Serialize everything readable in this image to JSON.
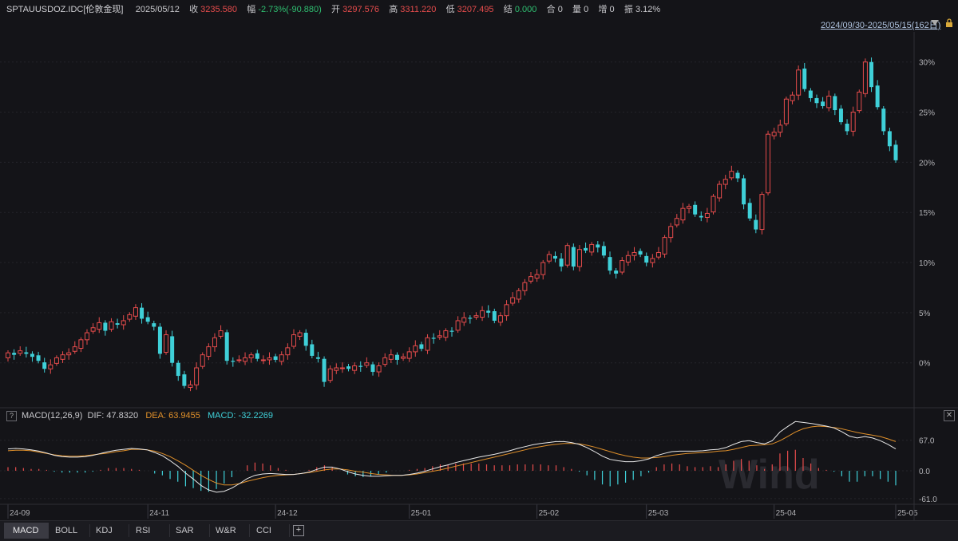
{
  "header": {
    "symbol": "SPTAUUSDOZ.IDC[伦敦金现]",
    "date": "2025/05/12",
    "close_label": "收",
    "close": "3235.580",
    "change_label": "幅",
    "change": "-2.73%(-90.880)",
    "open_label": "开",
    "open": "3297.576",
    "high_label": "高",
    "high": "3311.220",
    "low_label": "低",
    "low": "3207.495",
    "settle_label": "结",
    "settle": "0.000",
    "oi_label": "合",
    "oi": "0",
    "vol_label": "量",
    "vol": "0",
    "inc_label": "增",
    "inc": "0",
    "amp_label": "振",
    "amp": "3.12%"
  },
  "range_label": "2024/09/30-2025/05/15(162日)",
  "indicator": {
    "name": "MACD(12,26,9)",
    "dif_label": "DIF:",
    "dif": "47.8320",
    "dea_label": "DEA:",
    "dea": "63.9455",
    "macd_label": "MACD:",
    "macd": "-32.2269"
  },
  "tabs": [
    "MACD",
    "BOLL",
    "KDJ",
    "RSI",
    "SAR",
    "W&R",
    "CCI"
  ],
  "active_tab": "MACD",
  "watermark": "Wind",
  "colors": {
    "up": "#e64c4c",
    "down": "#3fd0d8",
    "dif": "#e8e8e8",
    "dea": "#e0902a",
    "bg": "#141418"
  },
  "chart_data": [
    {
      "type": "candlestick",
      "x_ticks": [
        "24-09",
        "24-11",
        "24-12",
        "25-01",
        "25-02",
        "25-03",
        "25-04",
        "25-05"
      ],
      "y_axis_ticks": [
        "30%",
        "25%",
        "20%",
        "15%",
        "10%",
        "5%",
        "0%"
      ],
      "y_ticks": [
        30,
        25,
        20,
        15,
        10,
        5,
        0
      ],
      "ylim": [
        -4,
        33
      ],
      "grid": true,
      "close_pct": [
        1.0,
        0.8,
        1.2,
        0.9,
        0.6,
        0.2,
        -0.6,
        -0.2,
        0.5,
        0.8,
        1.0,
        1.6,
        2.3,
        3.0,
        3.5,
        4.0,
        3.2,
        4.1,
        3.8,
        4.2,
        4.8,
        5.5,
        4.4,
        4.1,
        3.6,
        0.9,
        2.8,
        0.0,
        -1.3,
        -2.3,
        -2.2,
        -0.5,
        0.8,
        1.6,
        2.5,
        3.2,
        0.2,
        0.1,
        0.3,
        0.5,
        0.8,
        0.4,
        0.3,
        0.5,
        0.3,
        0.8,
        1.5,
        2.8,
        3.0,
        1.7,
        0.7,
        0.4,
        -1.9,
        -0.6,
        -0.5,
        -0.5,
        -0.6,
        -0.3,
        -0.4,
        0.0,
        -0.9,
        -0.3,
        0.5,
        0.8,
        0.3,
        0.6,
        1.1,
        1.7,
        1.4,
        2.5,
        2.4,
        2.7,
        3.2,
        3.1,
        4.2,
        4.5,
        4.4,
        4.7,
        5.2,
        5.0,
        4.2,
        4.7,
        5.8,
        6.5,
        7.2,
        8.0,
        8.6,
        8.8,
        10.0,
        10.8,
        10.4,
        9.6,
        11.7,
        9.6,
        11.3,
        11.2,
        11.8,
        11.5,
        10.7,
        9.2,
        8.9,
        10.2,
        10.7,
        11.0,
        10.8,
        10.0,
        10.4,
        11.0,
        12.5,
        13.6,
        14.4,
        15.4,
        15.6,
        14.8,
        14.5,
        14.9,
        16.6,
        17.8,
        18.3,
        19.1,
        18.4,
        15.8,
        14.4,
        13.3,
        16.8,
        22.8,
        23.0,
        23.7,
        26.3,
        26.7,
        29.2,
        27.3,
        26.4,
        25.9,
        25.6,
        26.6,
        25.2,
        24.0,
        23.1,
        25.0,
        27.0,
        30.0,
        27.5,
        25.5,
        23.1,
        21.6,
        20.2
      ]
    },
    {
      "type": "macd",
      "y_axis_ticks": [
        "67.0",
        "0.0",
        "-61.0"
      ],
      "y_ticks": [
        67.0,
        0.0,
        -61.0
      ],
      "ylim": [
        -70,
        105
      ],
      "series": [
        {
          "name": "DIF",
          "values": [
            48,
            49,
            48,
            46,
            43,
            39,
            34,
            31,
            30,
            30,
            31,
            34,
            38,
            42,
            45,
            47,
            49,
            48,
            46,
            40,
            33,
            22,
            10,
            -5,
            -18,
            -32,
            -42,
            -47,
            -45,
            -38,
            -28,
            -17,
            -10,
            -7,
            -6,
            -7,
            -8,
            -8,
            -6,
            -3,
            3,
            8,
            8,
            4,
            -2,
            -7,
            -10,
            -12,
            -12,
            -11,
            -10,
            -10,
            -8,
            -5,
            -1,
            4,
            9,
            13,
            18,
            22,
            26,
            30,
            33,
            36,
            40,
            44,
            49,
            53,
            57,
            60,
            62,
            64,
            64,
            62,
            58,
            51,
            42,
            32,
            25,
            22,
            20,
            20,
            22,
            26,
            33,
            38,
            42,
            43,
            43,
            43,
            44,
            46,
            47,
            51,
            58,
            64,
            66,
            62,
            59,
            66,
            85,
            97,
            108,
            106,
            104,
            101,
            98,
            94,
            86,
            76,
            72,
            75,
            72,
            66,
            58,
            48
          ]
        },
        {
          "name": "DEA",
          "values": [
            44,
            45,
            45,
            44,
            41,
            38,
            35,
            33,
            32,
            32,
            33,
            35,
            37,
            39,
            42,
            44,
            47,
            47,
            46,
            43,
            38,
            31,
            22,
            12,
            1,
            -10,
            -19,
            -27,
            -31,
            -31,
            -28,
            -23,
            -19,
            -15,
            -12,
            -10,
            -9,
            -8,
            -6,
            -4,
            -1,
            2,
            4,
            4,
            2,
            -1,
            -3,
            -6,
            -8,
            -9,
            -10,
            -10,
            -9,
            -7,
            -4,
            -1,
            2,
            6,
            10,
            14,
            18,
            22,
            26,
            30,
            34,
            38,
            42,
            46,
            50,
            53,
            56,
            58,
            60,
            60,
            59,
            56,
            52,
            47,
            42,
            37,
            33,
            30,
            28,
            28,
            29,
            31,
            34,
            36,
            38,
            39,
            40,
            41,
            43,
            44,
            47,
            51,
            55,
            56,
            57,
            59,
            66,
            75,
            85,
            92,
            96,
            98,
            97,
            95,
            92,
            88,
            84,
            81,
            78,
            75,
            70,
            64
          ]
        }
      ]
    }
  ]
}
